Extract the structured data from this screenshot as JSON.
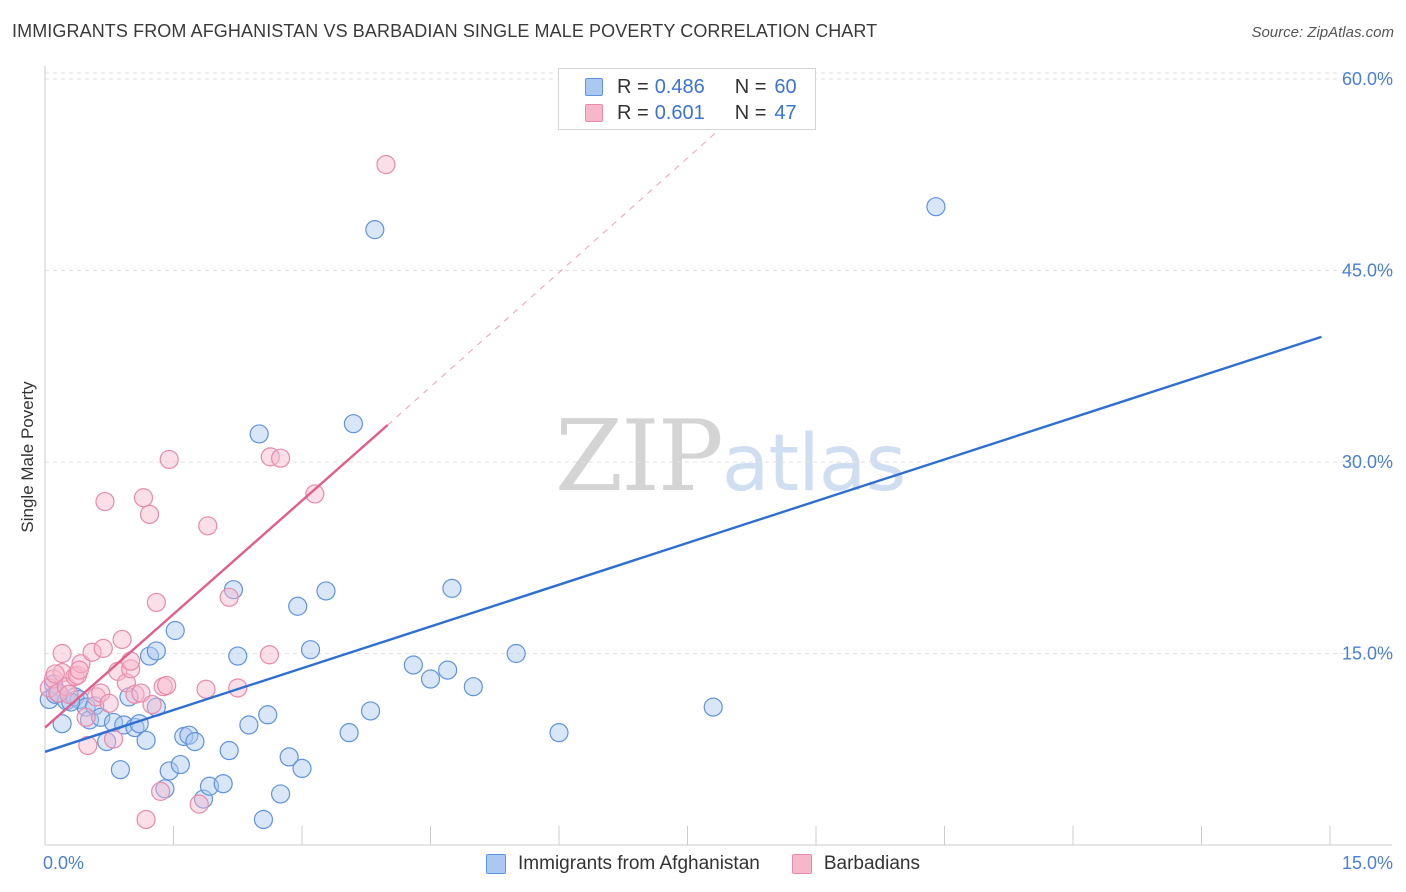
{
  "header": {
    "title": "IMMIGRANTS FROM AFGHANISTAN VS BARBADIAN SINGLE MALE POVERTY CORRELATION CHART",
    "source": "Source: ZipAtlas.com"
  },
  "watermark": {
    "zip": "ZIP",
    "atlas": "atlas"
  },
  "legend_top": {
    "rows": [
      {
        "r_label": "R =",
        "r_value": "0.486",
        "n_label": "N =",
        "n_value": "60"
      },
      {
        "r_label": "R =",
        "r_value": "0.601",
        "n_label": "N =",
        "n_value": "47"
      }
    ]
  },
  "colors": {
    "blue_line": "#2f6fd0",
    "blue_fill": "#aac8f0",
    "blue_stroke": "#5f93de",
    "pink_line": "#e0608b",
    "pink_fill": "#f6b7cb",
    "pink_stroke": "#e98aab",
    "tick_text": "#4a7fd4",
    "grid": "#e2e2e2"
  },
  "chart_data": {
    "type": "scatter",
    "title": "IMMIGRANTS FROM AFGHANISTAN VS BARBADIAN SINGLE MALE POVERTY CORRELATION CHART",
    "xlabel": "",
    "ylabel": "Single Male Poverty",
    "xlim": [
      0,
      15
    ],
    "ylim": [
      0,
      60
    ],
    "x_tick_labels": [
      "0.0%",
      "15.0%"
    ],
    "y_ticks": [
      15,
      30,
      45,
      60
    ],
    "y_tick_labels": [
      "15.0%",
      "30.0%",
      "45.0%",
      "60.0%"
    ],
    "grid": true,
    "legend_position": "bottom",
    "series": [
      {
        "name": "Immigrants from Afghanistan",
        "color": "blue",
        "trend": {
          "x": [
            0.0,
            14.9
          ],
          "y": [
            7.3,
            39.8
          ]
        },
        "points": [
          [
            0.05,
            11.4
          ],
          [
            0.12,
            11.8
          ],
          [
            0.2,
            9.5
          ],
          [
            0.25,
            11.3
          ],
          [
            0.35,
            11.6
          ],
          [
            0.4,
            11.4
          ],
          [
            0.48,
            10.8
          ],
          [
            0.52,
            9.8
          ],
          [
            0.58,
            10.9
          ],
          [
            0.65,
            10.0
          ],
          [
            0.72,
            8.1
          ],
          [
            0.8,
            9.6
          ],
          [
            0.88,
            5.9
          ],
          [
            0.92,
            9.4
          ],
          [
            0.98,
            11.6
          ],
          [
            1.05,
            9.2
          ],
          [
            1.1,
            9.5
          ],
          [
            1.18,
            8.2
          ],
          [
            1.22,
            14.8
          ],
          [
            1.3,
            15.2
          ],
          [
            1.3,
            10.8
          ],
          [
            1.4,
            4.4
          ],
          [
            1.45,
            5.8
          ],
          [
            1.52,
            16.8
          ],
          [
            1.58,
            6.3
          ],
          [
            1.62,
            8.5
          ],
          [
            1.68,
            8.6
          ],
          [
            1.75,
            8.1
          ],
          [
            1.85,
            3.6
          ],
          [
            1.92,
            4.6
          ],
          [
            2.08,
            4.8
          ],
          [
            2.15,
            7.4
          ],
          [
            2.2,
            20.0
          ],
          [
            2.25,
            14.8
          ],
          [
            2.38,
            9.4
          ],
          [
            2.5,
            32.2
          ],
          [
            2.55,
            2.0
          ],
          [
            2.6,
            10.2
          ],
          [
            2.75,
            4.0
          ],
          [
            2.85,
            6.9
          ],
          [
            2.95,
            18.7
          ],
          [
            3.0,
            6.0
          ],
          [
            3.1,
            15.3
          ],
          [
            3.28,
            19.9
          ],
          [
            3.55,
            8.8
          ],
          [
            3.6,
            33.0
          ],
          [
            3.8,
            10.5
          ],
          [
            3.85,
            48.2
          ],
          [
            4.3,
            14.1
          ],
          [
            4.5,
            13.0
          ],
          [
            4.7,
            13.7
          ],
          [
            4.75,
            20.1
          ],
          [
            5.0,
            12.4
          ],
          [
            5.5,
            15.0
          ],
          [
            6.0,
            8.8
          ],
          [
            7.8,
            10.8
          ],
          [
            10.4,
            50.0
          ],
          [
            0.1,
            12.6
          ],
          [
            0.3,
            11.2
          ],
          [
            0.16,
            11.9
          ]
        ]
      },
      {
        "name": "Barbadians",
        "color": "pink",
        "trend": {
          "x": [
            0.0,
            4.0
          ],
          "y": [
            9.2,
            32.9
          ]
        },
        "trend_extension": {
          "x": [
            4.0,
            8.2
          ],
          "y": [
            32.9,
            58.0
          ]
        },
        "points": [
          [
            0.05,
            12.3
          ],
          [
            0.1,
            13.0
          ],
          [
            0.15,
            11.9
          ],
          [
            0.2,
            13.5
          ],
          [
            0.25,
            12.4
          ],
          [
            0.2,
            15.0
          ],
          [
            0.28,
            11.8
          ],
          [
            0.35,
            13.2
          ],
          [
            0.38,
            13.3
          ],
          [
            0.42,
            14.2
          ],
          [
            0.48,
            10.0
          ],
          [
            0.5,
            7.8
          ],
          [
            0.55,
            15.1
          ],
          [
            0.6,
            11.6
          ],
          [
            0.65,
            11.9
          ],
          [
            0.68,
            15.4
          ],
          [
            0.7,
            26.9
          ],
          [
            0.75,
            11.1
          ],
          [
            0.8,
            8.3
          ],
          [
            0.85,
            13.6
          ],
          [
            0.9,
            16.1
          ],
          [
            0.95,
            12.7
          ],
          [
            1.0,
            13.8
          ],
          [
            1.0,
            14.4
          ],
          [
            1.05,
            11.8
          ],
          [
            1.12,
            11.9
          ],
          [
            1.18,
            2.0
          ],
          [
            1.15,
            27.2
          ],
          [
            1.22,
            25.9
          ],
          [
            1.25,
            11.0
          ],
          [
            1.3,
            19.0
          ],
          [
            1.35,
            4.2
          ],
          [
            1.38,
            12.4
          ],
          [
            1.42,
            12.5
          ],
          [
            1.45,
            30.2
          ],
          [
            1.8,
            3.2
          ],
          [
            1.88,
            12.2
          ],
          [
            1.9,
            25.0
          ],
          [
            2.15,
            19.4
          ],
          [
            2.25,
            12.3
          ],
          [
            2.62,
            14.9
          ],
          [
            2.63,
            30.4
          ],
          [
            2.75,
            30.3
          ],
          [
            3.15,
            27.5
          ],
          [
            3.98,
            53.3
          ],
          [
            0.4,
            13.7
          ],
          [
            0.12,
            13.4
          ]
        ]
      }
    ]
  },
  "legend_bottom": {
    "items": [
      {
        "label": "Immigrants from Afghanistan"
      },
      {
        "label": "Barbadians"
      }
    ]
  }
}
